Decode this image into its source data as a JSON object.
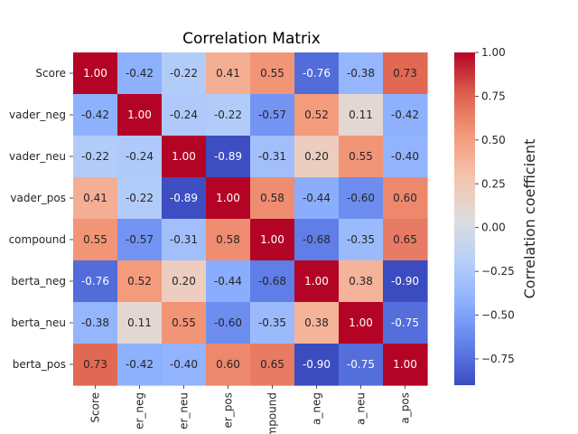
{
  "chart_data": {
    "type": "heatmap",
    "title": "Correlation Matrix",
    "rows_visible": [
      "Score",
      "vader_neg",
      "vader_neu",
      "vader_pos",
      "compound",
      "berta_neg",
      "berta_neu",
      "berta_pos"
    ],
    "columns_visible": [
      "Score",
      "er_neg",
      "er_neu",
      "er_pos",
      "ompound",
      "a_neg",
      "a_neu",
      "a_pos"
    ],
    "values": [
      [
        1.0,
        -0.42,
        -0.22,
        0.41,
        0.55,
        -0.76,
        -0.38,
        0.73
      ],
      [
        -0.42,
        1.0,
        -0.24,
        -0.22,
        -0.57,
        0.52,
        0.11,
        -0.42
      ],
      [
        -0.22,
        -0.24,
        1.0,
        -0.89,
        -0.31,
        0.2,
        0.55,
        -0.4
      ],
      [
        0.41,
        -0.22,
        -0.89,
        1.0,
        0.58,
        -0.44,
        -0.6,
        0.6
      ],
      [
        0.55,
        -0.57,
        -0.31,
        0.58,
        1.0,
        -0.68,
        -0.35,
        0.65
      ],
      [
        -0.76,
        0.52,
        0.2,
        -0.44,
        -0.68,
        1.0,
        0.38,
        -0.9
      ],
      [
        -0.38,
        0.11,
        0.55,
        -0.6,
        -0.35,
        0.38,
        1.0,
        -0.75
      ],
      [
        0.73,
        -0.42,
        -0.4,
        0.6,
        0.65,
        -0.9,
        -0.75,
        1.0
      ]
    ],
    "colormap": "coolwarm",
    "value_range": [
      -0.9,
      1.0
    ],
    "colorbar": {
      "label": "Correlation coefficient",
      "ticks": [
        "1.00",
        "0.75",
        "0.50",
        "0.25",
        "0.00",
        "−0.25",
        "−0.50",
        "−0.75"
      ]
    },
    "grid": false
  }
}
